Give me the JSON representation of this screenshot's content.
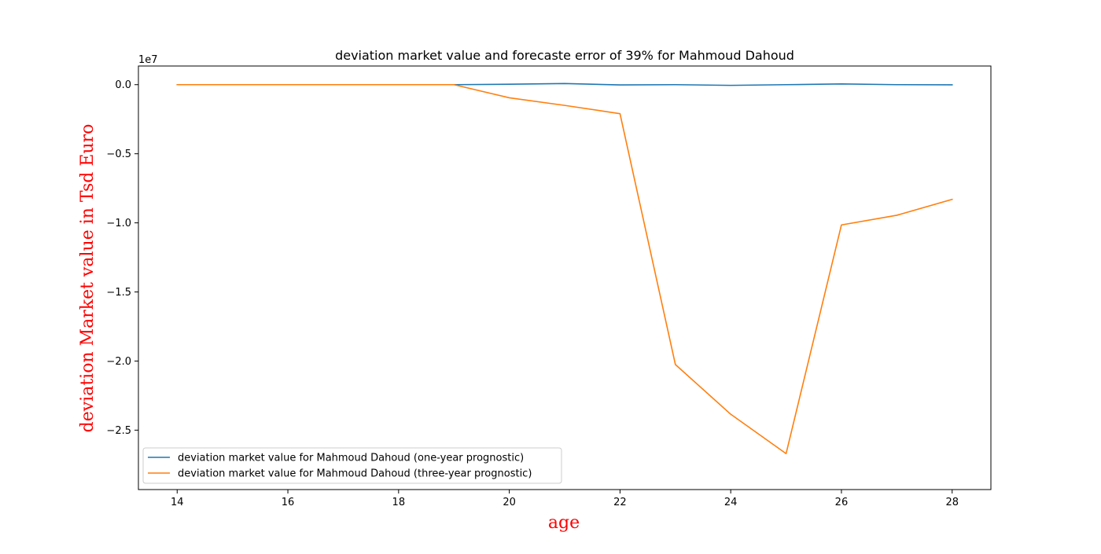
{
  "chart_data": {
    "type": "line",
    "title": "deviation market value and forecaste error of 39% for Mahmoud Dahoud",
    "xlabel": "age",
    "ylabel": "deviation Market value in Tsd Euro",
    "axis_label_color": "#ff0000",
    "y_offset_text": "1e7",
    "xlim": [
      13.3,
      28.7
    ],
    "ylim": [
      -29300000,
      1350000
    ],
    "x_ticks": [
      14,
      16,
      18,
      20,
      22,
      24,
      26,
      28
    ],
    "x_tick_labels": [
      "14",
      "16",
      "18",
      "20",
      "22",
      "24",
      "26",
      "28"
    ],
    "y_ticks": [
      0,
      -5000000,
      -10000000,
      -15000000,
      -20000000,
      -25000000
    ],
    "y_tick_labels": [
      "0.0",
      "−0.5",
      "−1.0",
      "−1.5",
      "−2.0",
      "−2.5"
    ],
    "grid": false,
    "legend_position": "lower-left",
    "x": [
      14,
      15,
      16,
      17,
      18,
      19,
      20,
      21,
      22,
      23,
      24,
      25,
      26,
      27,
      28
    ],
    "series": [
      {
        "name": "deviation market value for Mahmoud Dahoud (one-year prognostic)",
        "color": "#1f77b4",
        "values": [
          0,
          0,
          0,
          0,
          0,
          0,
          30000,
          80000,
          -20000,
          0,
          -50000,
          0,
          50000,
          0,
          -10000
        ]
      },
      {
        "name": "deviation market value for Mahmoud Dahoud (three-year prognostic)",
        "color": "#ff7f0e",
        "values": [
          0,
          0,
          0,
          0,
          0,
          0,
          -950000,
          -1500000,
          -2100000,
          -20250000,
          -23850000,
          -26700000,
          -10150000,
          -9450000,
          -8300000
        ]
      }
    ]
  }
}
